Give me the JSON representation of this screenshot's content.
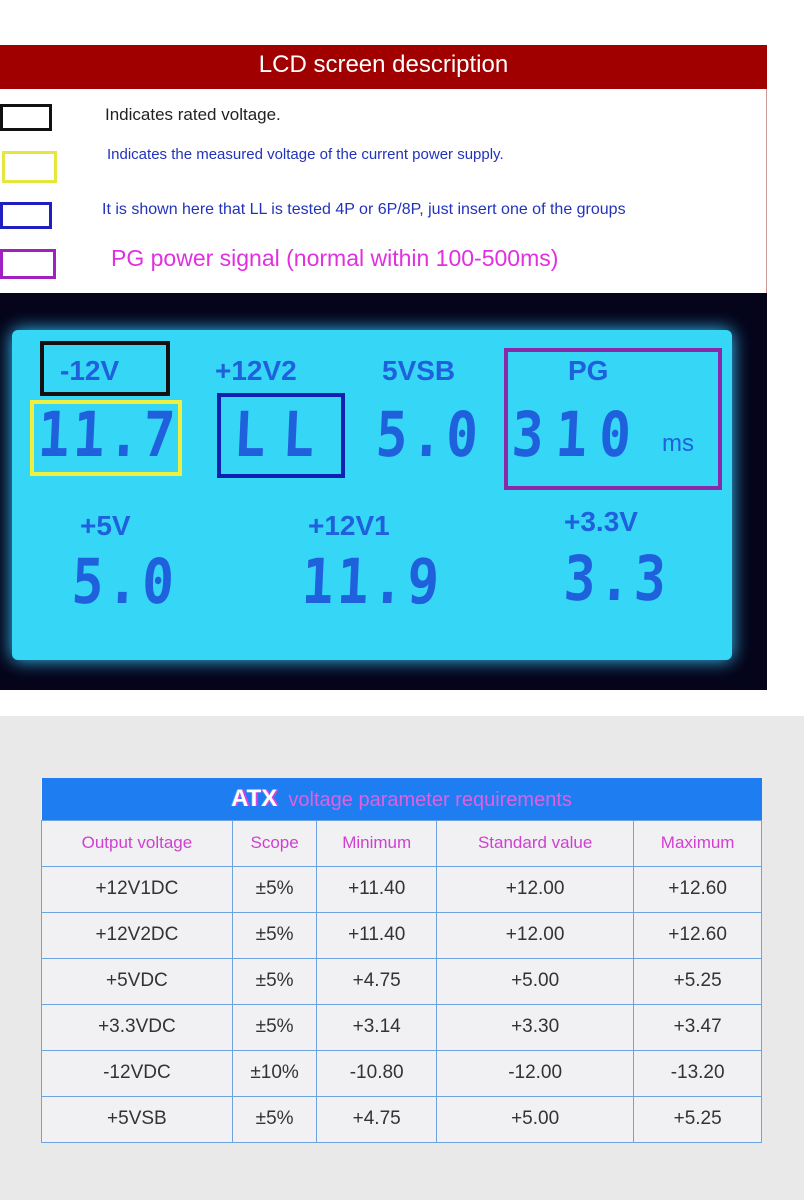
{
  "header": {
    "title": "LCD screen description"
  },
  "legend": [
    {
      "color": "#111111",
      "text": "Indicates rated voltage.",
      "text_color": "#222222"
    },
    {
      "color": "#e6e640",
      "text": "Indicates the measured voltage of the current power supply.",
      "text_color": "#2233bb"
    },
    {
      "color": "#2020c0",
      "text": "It is shown here that LL is tested 4P or 6P/8P, just insert one of the groups",
      "text_color": "#2233bb"
    },
    {
      "color": "#a020c0",
      "text": "PG power signal (normal within 100-500ms)",
      "text_color": "#e030e0"
    }
  ],
  "lcd": {
    "minus12v": {
      "label": "-12V",
      "value": "11.7"
    },
    "plus12v2": {
      "label": "+12V2",
      "value": "LL"
    },
    "vsb": {
      "label": "5VSB",
      "value": "5.0"
    },
    "pg": {
      "label": "PG",
      "value": "310",
      "unit": "ms"
    },
    "plus5v": {
      "label": "+5V",
      "value": "5.0"
    },
    "plus12v1": {
      "label": "+12V1",
      "value": "11.9"
    },
    "plus3v3": {
      "label": "+3.3V",
      "value": "3.3"
    }
  },
  "table": {
    "title_prefix": "ATX",
    "title": "voltage parameter requirements",
    "columns": [
      "Output voltage",
      "Scope",
      "Minimum",
      "Standard value",
      "Maximum"
    ],
    "rows": [
      [
        "+12V1DC",
        "±5%",
        "+11.40",
        "+12.00",
        "+12.60"
      ],
      [
        "+12V2DC",
        "±5%",
        "+11.40",
        "+12.00",
        "+12.60"
      ],
      [
        "+5VDC",
        "±5%",
        "+4.75",
        "+5.00",
        "+5.25"
      ],
      [
        "+3.3VDC",
        "±5%",
        "+3.14",
        "+3.30",
        "+3.47"
      ],
      [
        "-12VDC",
        "±10%",
        "-10.80",
        "-12.00",
        "-13.20"
      ],
      [
        "+5VSB",
        "±5%",
        "+4.75",
        "+5.00",
        "+5.25"
      ]
    ]
  }
}
